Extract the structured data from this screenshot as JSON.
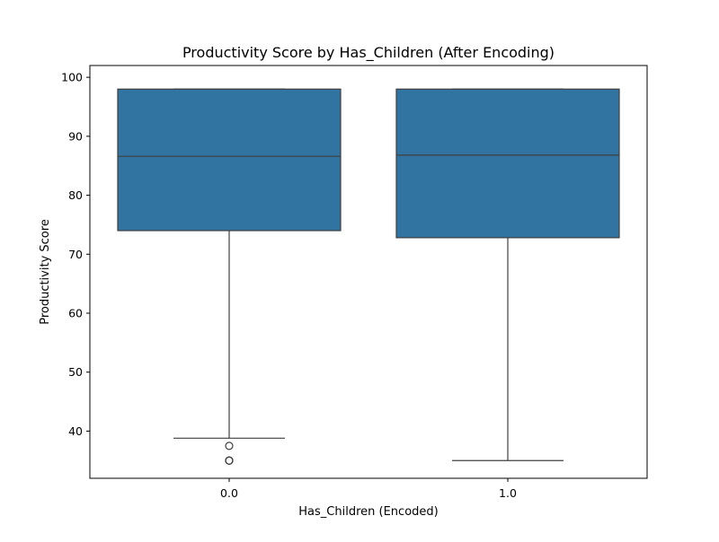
{
  "chart_data": {
    "type": "box",
    "title": "Productivity Score by Has_Children (After Encoding)",
    "xlabel": "Has_Children (Encoded)",
    "ylabel": "Productivity Score",
    "categories": [
      "0.0",
      "1.0"
    ],
    "ylim": [
      32,
      102
    ],
    "yticks": [
      40,
      50,
      60,
      70,
      80,
      90,
      100
    ],
    "grid": false,
    "box_color": "#3274a1",
    "line_color": "#3f3f3f",
    "boxes": [
      {
        "category": "0.0",
        "whisker_low": 38.8,
        "q1": 74.0,
        "median": 86.6,
        "q3": 98.0,
        "whisker_high": 98.0,
        "outliers": [
          37.5,
          35.0,
          35.0,
          35.0
        ]
      },
      {
        "category": "1.0",
        "whisker_low": 35.0,
        "q1": 72.8,
        "median": 86.8,
        "q3": 98.0,
        "whisker_high": 98.0,
        "outliers": []
      }
    ]
  }
}
